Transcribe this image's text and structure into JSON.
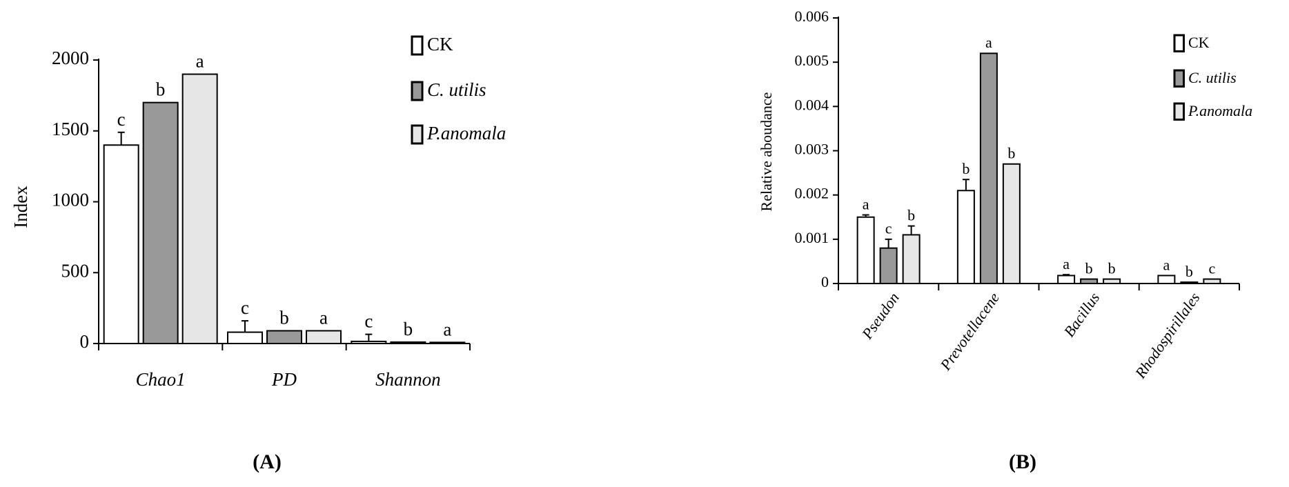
{
  "chart_data": [
    {
      "type": "bar",
      "y_label": "Index",
      "panel_label": "(A)",
      "categories": [
        "Chao1",
        "PD",
        "Shannon"
      ],
      "ylim": [
        0,
        2000
      ],
      "yticks": [
        0,
        500,
        1000,
        1500,
        2000
      ],
      "series": [
        {
          "name": "CK",
          "color": "#ffffff",
          "italic": false,
          "values": [
            1400,
            80,
            15
          ],
          "errors": [
            90,
            80,
            50
          ],
          "labels": [
            "c",
            "c",
            "c"
          ]
        },
        {
          "name": "C. utilis",
          "color": "#999999",
          "italic": true,
          "values": [
            1700,
            90,
            10
          ],
          "errors": [
            null,
            null,
            null
          ],
          "labels": [
            "b",
            "b",
            "b"
          ]
        },
        {
          "name": "P.anomala",
          "color": "#e6e6e6",
          "italic": true,
          "values": [
            1900,
            90,
            8
          ],
          "errors": [
            null,
            null,
            null
          ],
          "labels": [
            "a",
            "a",
            "a"
          ]
        }
      ]
    },
    {
      "type": "bar",
      "y_label": "Relative aboudance",
      "panel_label": "(B)",
      "categories": [
        "Pseudon",
        "Prevotellacene",
        "Bacillus",
        "Rhodospirillales"
      ],
      "ylim": [
        0,
        0.006
      ],
      "yticks": [
        0,
        0.001,
        0.002,
        0.003,
        0.004,
        0.005,
        0.006
      ],
      "series": [
        {
          "name": "CK",
          "color": "#ffffff",
          "italic": false,
          "values": [
            0.0015,
            0.0021,
            0.00018,
            0.00018
          ],
          "errors": [
            5e-05,
            0.00025,
            2e-05,
            null
          ],
          "labels": [
            "a",
            "b",
            "a",
            "a"
          ]
        },
        {
          "name": "C. utilis",
          "color": "#999999",
          "italic": true,
          "values": [
            0.0008,
            0.0052,
            0.0001,
            3e-05
          ],
          "errors": [
            0.0002,
            null,
            null,
            null
          ],
          "labels": [
            "c",
            "a",
            "b",
            "b"
          ]
        },
        {
          "name": "P.anomala",
          "color": "#e6e6e6",
          "italic": true,
          "values": [
            0.0011,
            0.0027,
            0.0001,
            0.0001
          ],
          "errors": [
            0.0002,
            null,
            null,
            null
          ],
          "labels": [
            "b",
            "b",
            "b",
            "c"
          ]
        }
      ]
    }
  ]
}
